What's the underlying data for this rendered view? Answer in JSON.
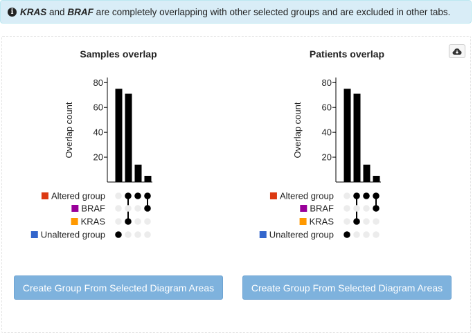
{
  "alert": {
    "group1": "KRAS",
    "conj": "and",
    "group2": "BRAF",
    "message": "are completely overlapping with other selected groups and are excluded in other tabs."
  },
  "colors": {
    "altered": "#dc3912",
    "braf": "#990099",
    "kras": "#ff9900",
    "unaltered": "#3366cc"
  },
  "charts": [
    {
      "title": "Samples overlap",
      "button_label": "Create Group From Selected Diagram Areas"
    },
    {
      "title": "Patients overlap",
      "button_label": "Create Group From Selected Diagram Areas"
    }
  ],
  "chart_data": [
    {
      "type": "bar",
      "title": "Samples overlap",
      "ylabel": "Overlap count",
      "ylim": [
        0,
        80
      ],
      "yticks": [
        20,
        40,
        60,
        80
      ],
      "groups": [
        "Altered group",
        "BRAF",
        "KRAS",
        "Unaltered group"
      ],
      "combinations": [
        [
          "Unaltered group"
        ],
        [
          "Altered group",
          "KRAS"
        ],
        [
          "Altered group"
        ],
        [
          "Altered group",
          "BRAF"
        ]
      ],
      "values": [
        75,
        71,
        14,
        5
      ]
    },
    {
      "type": "bar",
      "title": "Patients overlap",
      "ylabel": "Overlap count",
      "ylim": [
        0,
        80
      ],
      "yticks": [
        20,
        40,
        60,
        80
      ],
      "groups": [
        "Altered group",
        "BRAF",
        "KRAS",
        "Unaltered group"
      ],
      "combinations": [
        [
          "Unaltered group"
        ],
        [
          "Altered group",
          "KRAS"
        ],
        [
          "Altered group"
        ],
        [
          "Altered group",
          "BRAF"
        ]
      ],
      "values": [
        75,
        71,
        14,
        5
      ]
    }
  ]
}
